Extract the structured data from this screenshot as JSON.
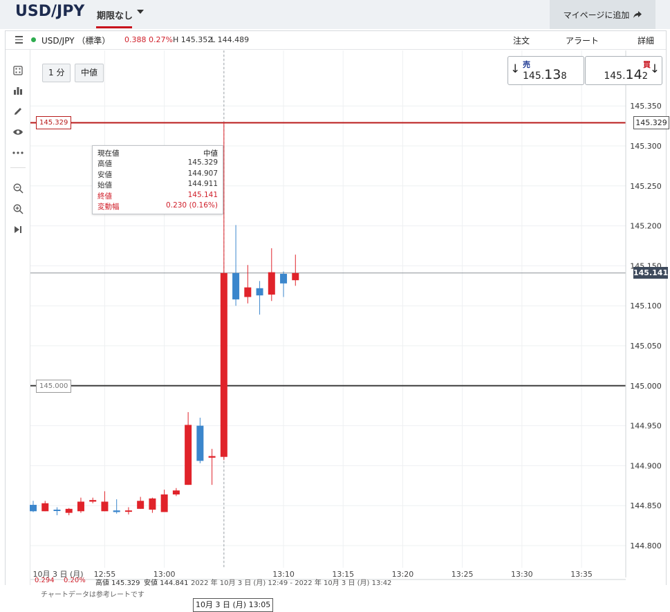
{
  "header": {
    "pair_title": "USD/JPY",
    "period_label": "期限なし",
    "mypage_button": "マイページに追加"
  },
  "info_bar": {
    "symbol": "USD/JPY （標準）",
    "change": "0.388",
    "change_pct": "0.27%",
    "high": "H 145.352",
    "low": "L 144.489",
    "links": [
      "注文",
      "アラート",
      "詳細"
    ]
  },
  "controls": {
    "timeframe": "1 分",
    "price_type": "中値"
  },
  "quote": {
    "sell_label": "売",
    "sell_prefix": "145.",
    "sell_big": "13",
    "sell_small": "8",
    "buy_label": "買",
    "buy_prefix": "145.",
    "buy_big": "14",
    "buy_small": "2",
    "sell_color": "#1f3a93",
    "buy_color": "#c8101b"
  },
  "tooltip": {
    "title_left": "現在値",
    "title_right": "中値",
    "rows": [
      {
        "label": "高値",
        "value": "145.329",
        "color": "#333"
      },
      {
        "label": "安値",
        "value": "144.907",
        "color": "#333"
      },
      {
        "label": "始値",
        "value": "144.911",
        "color": "#333"
      },
      {
        "label": "終値",
        "value": "145.141",
        "color": "#d0202b"
      },
      {
        "label": "変動幅",
        "value": "0.230 (0.16%)",
        "color": "#d0202b"
      }
    ]
  },
  "bottom_info": {
    "change": "0.294",
    "change_pct": "0.20%",
    "high": "高値 145.329",
    "low": "安値 144.841",
    "range": "2022 年 10月 3 日 (月) 12:49 - 2022 年 10月 3 日 (月) 13:42",
    "disclaimer": "チャートデータは参考レートです"
  },
  "crosshair_label": "10月 3 日 (月) 13:05",
  "price_tags": {
    "high_line": "145.329",
    "current": "145.141",
    "level_line": "145.000"
  },
  "colors": {
    "up": "#e0232a",
    "down": "#3b86cc",
    "high_line": "#b81a1a",
    "level_line": "#3c3c3c"
  },
  "chart_data": {
    "type": "candlestick",
    "ylim": [
      144.76,
      145.37
    ],
    "y_ticks": [
      145.35,
      145.3,
      145.25,
      145.2,
      145.15,
      145.1,
      145.05,
      145.0,
      144.95,
      144.9,
      144.85,
      144.8
    ],
    "y_tick_labels": [
      "145.350",
      "145.300",
      "145.250",
      "145.200",
      "145.150",
      "145.100",
      "145.050",
      "145.000",
      "144.950",
      "144.900",
      "144.850",
      "144.800"
    ],
    "x_labels": [
      "10月 3 日 (月)",
      "12:55",
      "13:00",
      "13:05",
      "13:10",
      "13:15",
      "13:20",
      "13:25",
      "13:30",
      "13:35"
    ],
    "horizontal_lines": [
      145.329,
      145.141,
      145.0
    ],
    "candles": [
      {
        "t": "12:49",
        "o": 144.851,
        "h": 144.856,
        "l": 144.842,
        "c": 144.843
      },
      {
        "t": "12:50",
        "o": 144.843,
        "h": 144.856,
        "l": 144.843,
        "c": 144.853
      },
      {
        "t": "12:51",
        "o": 144.845,
        "h": 144.848,
        "l": 144.838,
        "c": 144.844
      },
      {
        "t": "12:52",
        "o": 144.841,
        "h": 144.847,
        "l": 144.838,
        "c": 144.846
      },
      {
        "t": "12:53",
        "o": 144.843,
        "h": 144.86,
        "l": 144.841,
        "c": 144.855
      },
      {
        "t": "12:54",
        "o": 144.855,
        "h": 144.86,
        "l": 144.853,
        "c": 144.857
      },
      {
        "t": "12:55",
        "o": 144.843,
        "h": 144.868,
        "l": 144.843,
        "c": 144.855
      },
      {
        "t": "12:56",
        "o": 144.844,
        "h": 144.858,
        "l": 144.84,
        "c": 144.842
      },
      {
        "t": "12:57",
        "o": 144.843,
        "h": 144.848,
        "l": 144.839,
        "c": 144.844
      },
      {
        "t": "12:58",
        "o": 144.846,
        "h": 144.861,
        "l": 144.846,
        "c": 144.856
      },
      {
        "t": "12:59",
        "o": 144.845,
        "h": 144.86,
        "l": 144.841,
        "c": 144.859
      },
      {
        "t": "13:00",
        "o": 144.842,
        "h": 144.87,
        "l": 144.842,
        "c": 144.864
      },
      {
        "t": "13:01",
        "o": 144.864,
        "h": 144.872,
        "l": 144.862,
        "c": 144.869
      },
      {
        "t": "13:02",
        "o": 144.876,
        "h": 144.967,
        "l": 144.876,
        "c": 144.951
      },
      {
        "t": "13:03",
        "o": 144.95,
        "h": 144.96,
        "l": 144.903,
        "c": 144.906
      },
      {
        "t": "13:04",
        "o": 144.91,
        "h": 144.921,
        "l": 144.876,
        "c": 144.912
      },
      {
        "t": "13:05",
        "o": 144.911,
        "h": 145.329,
        "l": 144.907,
        "c": 145.141
      },
      {
        "t": "13:06",
        "o": 145.141,
        "h": 145.201,
        "l": 145.1,
        "c": 145.108
      },
      {
        "t": "13:07",
        "o": 145.111,
        "h": 145.151,
        "l": 145.103,
        "c": 145.123
      },
      {
        "t": "13:08",
        "o": 145.122,
        "h": 145.131,
        "l": 145.089,
        "c": 145.113
      },
      {
        "t": "13:09",
        "o": 145.114,
        "h": 145.172,
        "l": 145.106,
        "c": 145.142
      },
      {
        "t": "13:10",
        "o": 145.14,
        "h": 145.143,
        "l": 145.111,
        "c": 145.128
      },
      {
        "t": "13:11",
        "o": 145.132,
        "h": 145.164,
        "l": 145.125,
        "c": 145.141
      }
    ]
  }
}
